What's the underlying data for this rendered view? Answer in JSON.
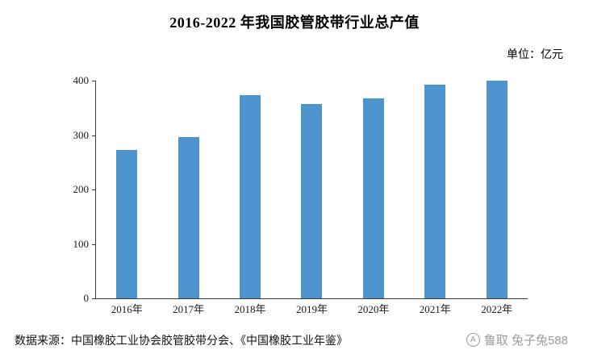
{
  "chart_data": {
    "type": "bar",
    "title": "2016-2022 年我国胶管胶带行业总产值",
    "unit_label": "单位：亿元",
    "categories": [
      "2016年",
      "2017年",
      "2018年",
      "2019年",
      "2020年",
      "2021年",
      "2022年"
    ],
    "values": [
      272,
      296,
      373,
      357,
      367,
      392,
      400
    ],
    "ylim": [
      0,
      400
    ],
    "yticks": [
      0,
      100,
      200,
      300,
      400
    ],
    "bar_color": "#4D94CE",
    "grid": false,
    "legend": "none",
    "xlabel": "",
    "ylabel": ""
  },
  "footer": {
    "source": "数据来源：中国橡胶工业协会胶管胶带分会、《中国橡胶工业年鉴》",
    "watermark_text": "鲁取 兔子兔588",
    "watermark_icon_letter": "A"
  }
}
